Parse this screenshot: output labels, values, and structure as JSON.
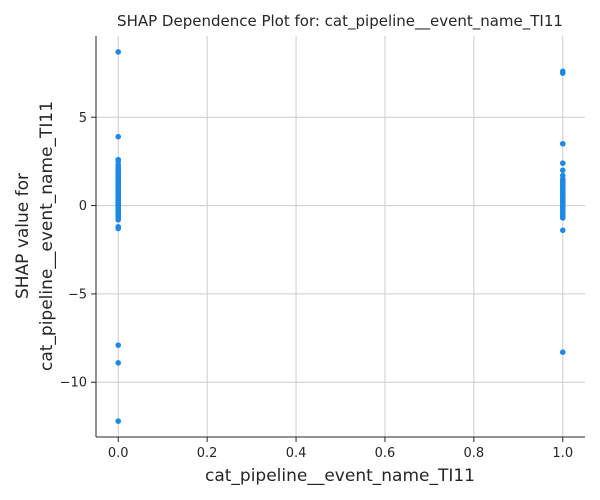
{
  "chart_data": {
    "type": "scatter",
    "title": "SHAP Dependence Plot for: cat_pipeline__event_name_TI11",
    "xlabel": "cat_pipeline__event_name_TI11",
    "ylabel": [
      "SHAP value for",
      "cat_pipeline__event_name_TI11"
    ],
    "xlim": [
      -0.05,
      1.05
    ],
    "ylim": [
      -13.1,
      9.6
    ],
    "xticks": [
      0.0,
      0.2,
      0.4,
      0.6,
      0.8,
      1.0
    ],
    "xtick_labels": [
      "0.0",
      "0.2",
      "0.4",
      "0.6",
      "0.8",
      "1.0"
    ],
    "yticks": [
      -10,
      -5,
      0,
      5
    ],
    "ytick_labels": [
      "−10",
      "−5",
      "0",
      "5"
    ],
    "grid": true,
    "legend": false,
    "point_color": "#1e88e5",
    "series": [
      {
        "x": [
          0,
          0,
          0,
          0,
          0,
          0,
          0,
          0,
          0,
          0,
          0,
          0,
          0,
          0,
          0,
          0,
          0,
          0,
          0,
          0,
          0,
          0,
          0,
          0,
          0,
          0,
          0,
          0,
          0,
          0,
          0,
          0,
          0,
          0,
          0,
          0,
          0,
          0,
          0,
          0,
          0,
          0,
          0,
          0,
          0,
          0,
          0,
          0,
          0,
          0,
          0,
          0,
          0,
          0,
          0,
          0,
          0,
          0,
          0,
          0,
          0,
          0,
          0,
          0,
          0
        ],
        "y": [
          8.7,
          3.9,
          2.6,
          2.5,
          2.3,
          2.2,
          2.1,
          2.0,
          1.9,
          1.8,
          1.7,
          1.6,
          1.5,
          1.4,
          1.3,
          1.2,
          1.1,
          1.0,
          0.9,
          0.8,
          0.7,
          0.6,
          0.5,
          0.4,
          0.3,
          0.2,
          0.1,
          0.0,
          -0.1,
          -0.2,
          -0.3,
          -0.4,
          -0.5,
          -0.6,
          -0.7,
          -0.8,
          -1.2,
          -1.3,
          -7.9,
          -8.9,
          -12.2,
          0.05,
          0.15,
          0.25,
          0.35,
          0.45,
          0.55,
          0.65,
          0.75,
          -0.05,
          -0.15,
          -0.25,
          -0.35,
          -0.45,
          -0.55,
          1.05,
          1.15,
          1.25,
          1.35,
          1.45,
          1.55,
          1.65,
          1.75,
          0.85,
          0.95
        ]
      },
      {
        "x": [
          1,
          1,
          1,
          1,
          1,
          1,
          1,
          1,
          1,
          1,
          1,
          1,
          1,
          1,
          1,
          1,
          1,
          1,
          1,
          1,
          1,
          1,
          1,
          1,
          1,
          1,
          1,
          1,
          1,
          1,
          1,
          1,
          1,
          1,
          1,
          1
        ],
        "y": [
          7.6,
          7.5,
          3.5,
          2.4,
          2.0,
          1.7,
          1.5,
          1.4,
          1.3,
          1.2,
          1.1,
          1.0,
          0.9,
          0.8,
          0.7,
          0.6,
          0.5,
          0.4,
          0.3,
          0.2,
          0.1,
          0.0,
          -0.1,
          -0.2,
          -0.3,
          -0.4,
          -0.5,
          -0.6,
          -0.7,
          -1.4,
          -8.3,
          0.25,
          0.35,
          0.45,
          0.15,
          -0.05
        ]
      }
    ]
  }
}
